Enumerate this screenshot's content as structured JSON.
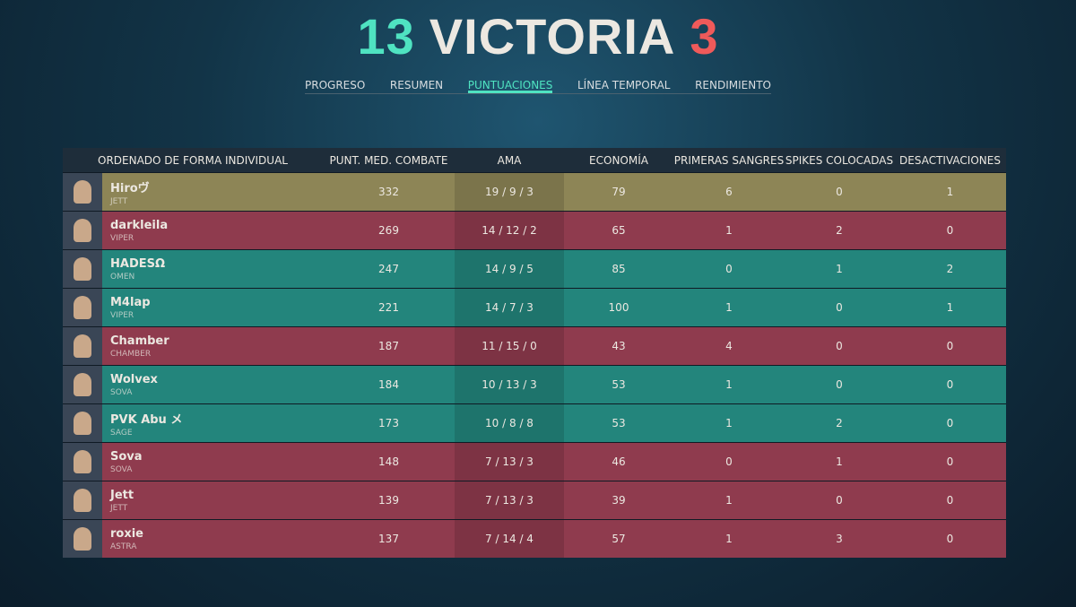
{
  "header": {
    "score_left": "13",
    "result": "VICTORIA",
    "score_right": "3"
  },
  "tabs": [
    {
      "label": "PROGRESO",
      "active": false
    },
    {
      "label": "RESUMEN",
      "active": false
    },
    {
      "label": "PUNTUACIONES",
      "active": true
    },
    {
      "label": "LÍNEA TEMPORAL",
      "active": false
    },
    {
      "label": "RENDIMIENTO",
      "active": false
    }
  ],
  "table": {
    "columns": [
      "ORDENADO DE FORMA INDIVIDUAL",
      "PUNT. MED. COMBATE",
      "AMA",
      "ECONOMÍA",
      "PRIMERAS SANGRES",
      "SPIKES COLOCADAS",
      "DESACTIVACIONES"
    ],
    "rows": [
      {
        "name": "Hiroヴ",
        "agent": "JETT",
        "acs": 332,
        "kda": "19 / 9 / 3",
        "economy": 79,
        "first_bloods": 6,
        "plants": 0,
        "defuses": 1,
        "color": "#8d8556"
      },
      {
        "name": "darkleila",
        "agent": "VIPER",
        "acs": 269,
        "kda": "14 / 12 / 2",
        "economy": 65,
        "first_bloods": 1,
        "plants": 2,
        "defuses": 0,
        "color": "#8f3b4e"
      },
      {
        "name": "HADESΩ",
        "agent": "OMEN",
        "acs": 247,
        "kda": "14 / 9 / 5",
        "economy": 85,
        "first_bloods": 0,
        "plants": 1,
        "defuses": 2,
        "color": "#23857c"
      },
      {
        "name": "M4lap",
        "agent": "VIPER",
        "acs": 221,
        "kda": "14 / 7 / 3",
        "economy": 100,
        "first_bloods": 1,
        "plants": 0,
        "defuses": 1,
        "color": "#23857c"
      },
      {
        "name": "Chamber",
        "agent": "CHAMBER",
        "acs": 187,
        "kda": "11 / 15 / 0",
        "economy": 43,
        "first_bloods": 4,
        "plants": 0,
        "defuses": 0,
        "color": "#8f3b4e"
      },
      {
        "name": "Wolvex",
        "agent": "SOVA",
        "acs": 184,
        "kda": "10 / 13 / 3",
        "economy": 53,
        "first_bloods": 1,
        "plants": 0,
        "defuses": 0,
        "color": "#23857c"
      },
      {
        "name": "PVK Abu メ",
        "agent": "SAGE",
        "acs": 173,
        "kda": "10 / 8 / 8",
        "economy": 53,
        "first_bloods": 1,
        "plants": 2,
        "defuses": 0,
        "color": "#23857c"
      },
      {
        "name": "Sova",
        "agent": "SOVA",
        "acs": 148,
        "kda": "7 / 13 / 3",
        "economy": 46,
        "first_bloods": 0,
        "plants": 1,
        "defuses": 0,
        "color": "#8f3b4e"
      },
      {
        "name": "Jett",
        "agent": "JETT",
        "acs": 139,
        "kda": "7 / 13 / 3",
        "economy": 39,
        "first_bloods": 1,
        "plants": 0,
        "defuses": 0,
        "color": "#8f3b4e"
      },
      {
        "name": "roxie",
        "agent": "ASTRA",
        "acs": 137,
        "kda": "7 / 14 / 4",
        "economy": 57,
        "first_bloods": 1,
        "plants": 3,
        "defuses": 0,
        "color": "#8f3b4e"
      }
    ]
  }
}
